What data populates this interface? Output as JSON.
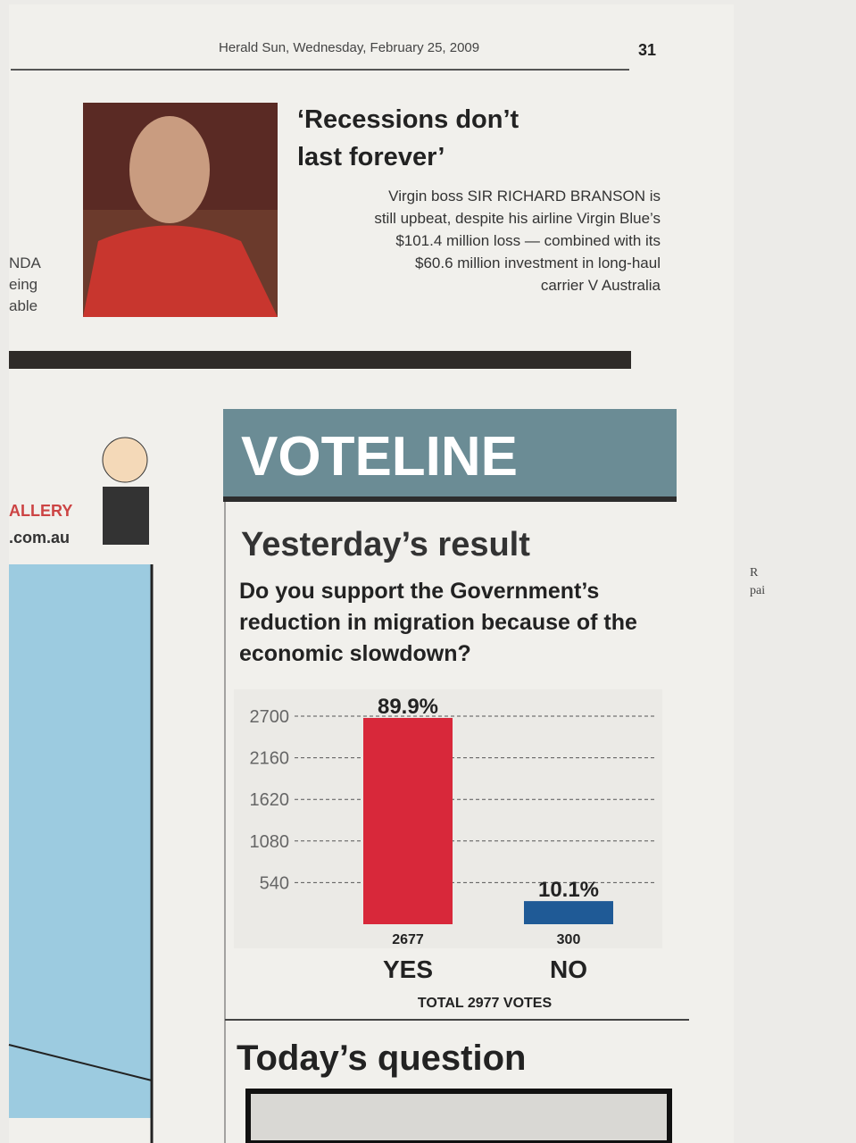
{
  "header": {
    "masthead": "Herald Sun, Wednesday, February 25, 2009",
    "page": "31"
  },
  "article": {
    "headline": [
      "‘Recessions don’t",
      "last forever’"
    ],
    "body": [
      "Virgin boss SIR RICHARD BRANSON is",
      "still upbeat, despite his airline Virgin Blue’s",
      "$101.4 million loss — combined with its",
      "$60.6 million investment in long-haul",
      "carrier V Australia"
    ]
  },
  "fragments": {
    "left": [
      "NDA",
      "eing",
      "able"
    ],
    "gallery": [
      "ALLERY",
      ".com.au"
    ],
    "right": [
      "R",
      "pai"
    ]
  },
  "voteline": {
    "banner": "VOTELINE",
    "next": "Today’s question"
  },
  "chart_data": {
    "type": "bar",
    "title": "Yesterday’s result",
    "question": [
      "Do you support the Government’s",
      "reduction in migration because of the",
      "economic slowdown?"
    ],
    "categories": [
      "YES",
      "NO"
    ],
    "values": [
      2677,
      300
    ],
    "percent_labels": [
      "89.9%",
      "10.1%"
    ],
    "colors": [
      "#d8283a",
      "#1f5a96"
    ],
    "ylim": [
      0,
      2700
    ],
    "yticks": [
      540,
      1080,
      1620,
      2160,
      2700
    ],
    "grid": true,
    "note": "TOTAL 2977 VOTES"
  }
}
